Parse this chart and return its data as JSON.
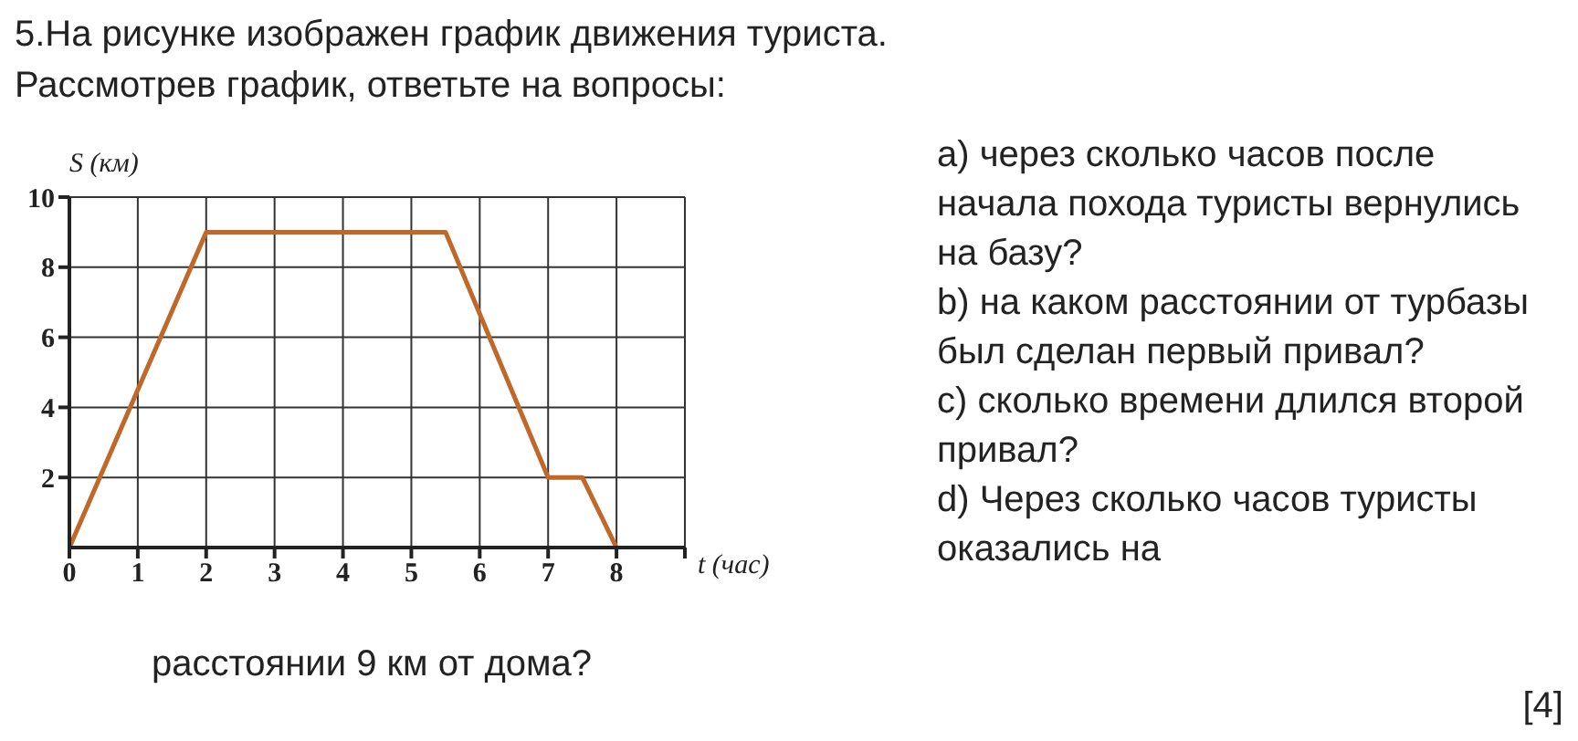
{
  "chart_data": {
    "type": "line",
    "title": "5.На рисунке изображен график движения туриста.",
    "subtitle": "Рассмотрев график, ответьте на вопросы:",
    "xlabel": "t (час)",
    "ylabel": "S (км)",
    "annotations": [
      "a) через сколько часов после начала похода туристы вернулись на базу?",
      "b) на каком расстоянии от турбазы был сделан первый привал?",
      "c) сколько времени длился второй привал?",
      "d) Через сколько часов туристы оказались на",
      "расстоянии 9 км от дома?",
      "[4]"
    ],
    "x": [
      0,
      2,
      5.5,
      7,
      7.5,
      8
    ],
    "series": [
      {
        "color": "#c0682a",
        "values": [
          0,
          9,
          9,
          2,
          2,
          0
        ]
      }
    ],
    "xlim": [
      0,
      9
    ],
    "xticks": [
      0,
      1,
      2,
      3,
      4,
      5,
      6,
      7,
      8,
      {
        "value": 9,
        "label": null
      }
    ],
    "ylim": [
      0,
      10
    ],
    "yticks": [
      2,
      4,
      6,
      8,
      10
    ],
    "grid": true,
    "marker": "none",
    "line_style": "solid"
  }
}
